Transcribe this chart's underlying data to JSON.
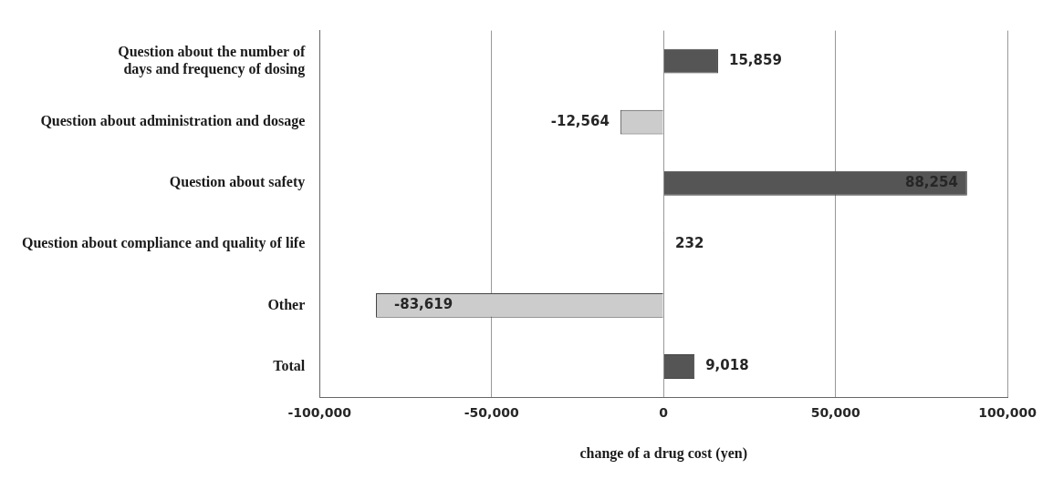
{
  "chart_data": {
    "type": "bar",
    "orientation": "horizontal",
    "xlabel": "change of a drug cost (yen)",
    "categories": [
      "Question about the number of days and frequency of dosing",
      "Question about administration and dosage",
      "Question about safety",
      "Question about compliance and quality of life",
      "Other",
      "Total"
    ],
    "values": [
      15859,
      -12564,
      88254,
      232,
      -83619,
      9018
    ],
    "value_labels": [
      "15,859",
      "-12,564",
      "88,254",
      "232",
      "-83,619",
      "9,018"
    ],
    "colors": [
      "#555555",
      "#cccccc",
      "#555555",
      "#cccccc",
      "#cccccc",
      "#555555"
    ],
    "xlim": [
      -100000,
      100000
    ],
    "xticks": [
      {
        "value": -100000,
        "label": "-100,000"
      },
      {
        "value": -50000,
        "label": "-50,000"
      },
      0,
      {
        "value": 50000,
        "label": "50,000"
      },
      {
        "value": 100000,
        "label": "100,000"
      }
    ],
    "grid": "x"
  }
}
